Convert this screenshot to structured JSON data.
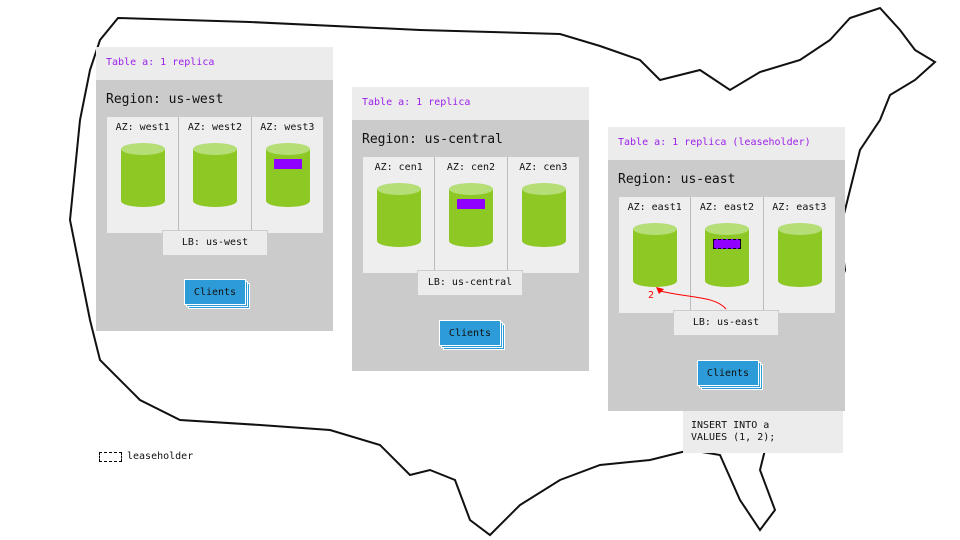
{
  "colors": {
    "replica": "#8dc825",
    "leaseholder": "#9000ff",
    "clients": "#2d9bd8",
    "write_arrow": "#ff0000",
    "region_bg": "#cbcbcb"
  },
  "regions": [
    {
      "table_label": "Table a: 1 replica",
      "region_label": "Region: us-west",
      "azs": [
        "AZ: west1",
        "AZ: west2",
        "AZ: west3"
      ],
      "replica_az": 2,
      "leaseholder": false,
      "lb": "LB: us-west",
      "clients": "Clients"
    },
    {
      "table_label": "Table a: 1 replica",
      "region_label": "Region: us-central",
      "azs": [
        "AZ: cen1",
        "AZ: cen2",
        "AZ: cen3"
      ],
      "replica_az": 1,
      "leaseholder": false,
      "lb": "LB: us-central",
      "clients": "Clients"
    },
    {
      "table_label": "Table a: 1 replica (leaseholder)",
      "region_label": "Region: us-east",
      "azs": [
        "AZ: east1",
        "AZ: east2",
        "AZ: east3"
      ],
      "replica_az": 1,
      "leaseholder": true,
      "lb": "LB: us-east",
      "clients": "Clients"
    }
  ],
  "arrow_label": "2",
  "sql": "INSERT INTO a\nVALUES (1, 2);",
  "legend": {
    "leaseholder": "leaseholder"
  }
}
